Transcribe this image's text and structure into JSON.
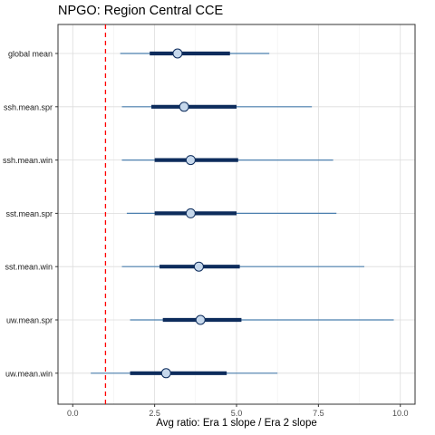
{
  "chart_data": {
    "type": "forest",
    "title": "NPGO: Region Central CCE",
    "xlabel": "Avg ratio: Era 1 slope / Era 2 slope",
    "ylabel": "",
    "xlim": [
      -0.45,
      10.45
    ],
    "xticks": [
      0,
      2.5,
      5,
      7.5,
      10
    ],
    "xtick_labels": [
      "0.0",
      "2.5",
      "5.0",
      "7.5",
      "10.0"
    ],
    "reference_line": {
      "x": 1,
      "style": "dashed",
      "color": "#ff0000"
    },
    "grid": true,
    "colors": {
      "thin_interval": "#4a7fae",
      "thick_interval": "#0d2c5c",
      "point_fill": "#c6d8ec",
      "point_stroke": "#0d2c5c"
    },
    "categories": [
      "global mean",
      "ssh.mean.spr",
      "ssh.mean.win",
      "sst.mean.spr",
      "sst.mean.win",
      "uw.mean.spr",
      "uw.mean.win"
    ],
    "rows": [
      {
        "label": "global mean",
        "point": 3.2,
        "inner": [
          2.35,
          4.8
        ],
        "outer": [
          1.45,
          6.0
        ]
      },
      {
        "label": "ssh.mean.spr",
        "point": 3.4,
        "inner": [
          2.4,
          5.0
        ],
        "outer": [
          1.5,
          7.3
        ]
      },
      {
        "label": "ssh.mean.win",
        "point": 3.6,
        "inner": [
          2.5,
          5.05
        ],
        "outer": [
          1.5,
          7.95
        ]
      },
      {
        "label": "sst.mean.spr",
        "point": 3.6,
        "inner": [
          2.5,
          5.0
        ],
        "outer": [
          1.65,
          8.05
        ]
      },
      {
        "label": "sst.mean.win",
        "point": 3.85,
        "inner": [
          2.65,
          5.1
        ],
        "outer": [
          1.5,
          8.9
        ]
      },
      {
        "label": "uw.mean.spr",
        "point": 3.9,
        "inner": [
          2.75,
          5.15
        ],
        "outer": [
          1.75,
          9.8
        ]
      },
      {
        "label": "uw.mean.win",
        "point": 2.85,
        "inner": [
          1.75,
          4.7
        ],
        "outer": [
          0.55,
          6.25
        ]
      }
    ]
  }
}
